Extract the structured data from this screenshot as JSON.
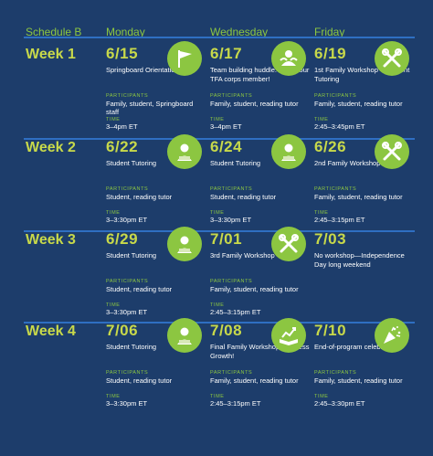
{
  "header": {
    "schedule": "Schedule B",
    "days": [
      "Monday",
      "Wednesday",
      "Friday"
    ]
  },
  "labels": {
    "participants": "PARTICIPANTS",
    "time": "TIME"
  },
  "weeks": [
    {
      "label": "Week 1",
      "cells": [
        {
          "date": "6/15",
          "event": "Springboard Orientation",
          "participants": "Family, student, Springboard staff",
          "time": "3–4pm ET",
          "icon": "flag-icon"
        },
        {
          "date": "6/17",
          "event": "Team building huddle: meet your TFA corps member!",
          "participants": "Family, student, reading tutor",
          "time": "3–4pm ET",
          "icon": "team-huddle-icon"
        },
        {
          "date": "6/19",
          "event": "1st Family Workshop + Student Tutoring",
          "participants": "Family, student, reading tutor",
          "time": "2:45–3:45pm ET",
          "icon": "tools-icon"
        }
      ]
    },
    {
      "label": "Week 2",
      "cells": [
        {
          "date": "6/22",
          "event": "Student Tutoring",
          "participants": "Student, reading tutor",
          "time": "3–3:30pm ET",
          "icon": "student-icon"
        },
        {
          "date": "6/24",
          "event": "Student Tutoring",
          "participants": "Student, reading tutor",
          "time": "3–3:30pm ET",
          "icon": "student-icon"
        },
        {
          "date": "6/26",
          "event": "2nd Family Workshop",
          "participants": "Family, student, reading tutor",
          "time": "2:45–3:15pm ET",
          "icon": "tools-icon"
        }
      ]
    },
    {
      "label": "Week 3",
      "cells": [
        {
          "date": "6/29",
          "event": "Student Tutoring",
          "participants": "Student, reading tutor",
          "time": "3–3:30pm ET",
          "icon": "student-icon"
        },
        {
          "date": "7/01",
          "event": "3rd Family Workshop",
          "participants": "Family, student, reading tutor",
          "time": "2:45–3:15pm ET",
          "icon": "tools-icon"
        },
        {
          "date": "7/03",
          "event": "No workshop—Independence Day long weekend",
          "participants": "",
          "time": "",
          "icon": ""
        }
      ]
    },
    {
      "label": "Week 4",
      "cells": [
        {
          "date": "7/06",
          "event": "Student Tutoring",
          "participants": "Student, reading tutor",
          "time": "3–3:30pm ET",
          "icon": "student-icon"
        },
        {
          "date": "7/08",
          "event": "Final Family Workshop + Assess Growth!",
          "participants": "Family, student, reading tutor",
          "time": "2:45–3:15pm ET",
          "icon": "growth-book-icon"
        },
        {
          "date": "7/10",
          "event": "End-of-program celebration!",
          "participants": "Family, student, reading tutor",
          "time": "2:45–3:30pm ET",
          "icon": "party-popper-icon"
        }
      ]
    }
  ]
}
